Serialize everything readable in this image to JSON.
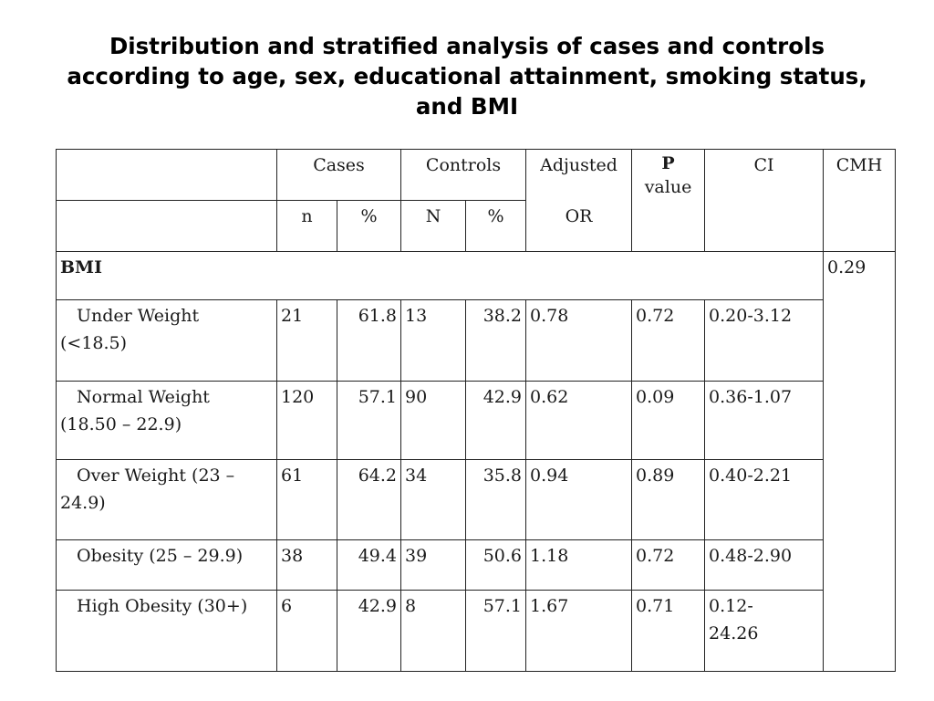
{
  "title": {
    "line1": "Distribution and stratified analysis of cases and controls",
    "line2": "according to age, sex, educational attainment, smoking status,",
    "line3": "and BMI"
  },
  "header": {
    "cases": "Cases",
    "controls": "Controls",
    "adjusted": "Adjusted",
    "or": "OR",
    "p": "P",
    "value": "value",
    "ci": "CI",
    "cmh": "CMH",
    "n_cases": "n",
    "pct_cases": "%",
    "n_controls": "N",
    "pct_controls": "%"
  },
  "section": {
    "label": "BMI",
    "cmh": "0.29"
  },
  "rows": [
    {
      "label1": "Under Weight",
      "label2": "(<18.5)",
      "n": "21",
      "pct": "61.8",
      "N": "13",
      "pct2": "38.2",
      "or": "0.78",
      "p": "0.72",
      "ci": "0.20-3.12"
    },
    {
      "label1": "Normal Weight",
      "label2": "(18.50 – 22.9)",
      "n": "120",
      "pct": "57.1",
      "N": "90",
      "pct2": "42.9",
      "or": "0.62",
      "p": "0.09",
      "ci": "0.36-1.07"
    },
    {
      "label1": "Over Weight (23 –",
      "label2": "24.9)",
      "n": "61",
      "pct": "64.2",
      "N": "34",
      "pct2": "35.8",
      "or": "0.94",
      "p": "0.89",
      "ci": "0.40-2.21"
    },
    {
      "label1": "Obesity (25 – 29.9)",
      "label2": "",
      "n": "38",
      "pct": "49.4",
      "N": "39",
      "pct2": "50.6",
      "or": "1.18",
      "p": "0.72",
      "ci": "0.48-2.90"
    },
    {
      "label1": "High Obesity (30+)",
      "label2": "",
      "n": "6",
      "pct": "42.9",
      "N": "8",
      "pct2": "57.1",
      "or": "1.67",
      "p": "0.71",
      "ci1": "0.12-",
      "ci2": "24.26"
    }
  ]
}
